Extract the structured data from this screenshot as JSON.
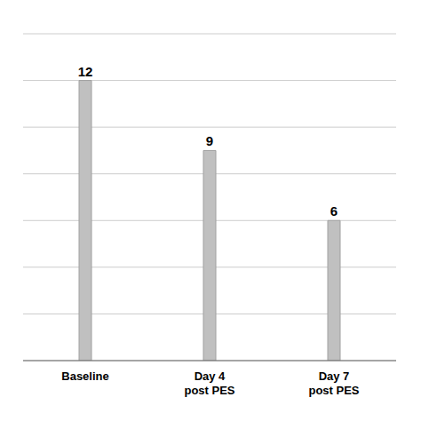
{
  "chart_data": {
    "type": "bar",
    "categories": [
      "Baseline",
      "Day 4\npost PES",
      "Day 7\npost PES"
    ],
    "values": [
      12,
      9,
      6
    ],
    "value_labels": [
      "12",
      "9",
      "6"
    ],
    "data_labels": true,
    "color": "#c0c0c0",
    "ylim": [
      0,
      14
    ],
    "yticks": [
      0,
      2,
      4,
      6,
      8,
      10,
      12,
      14
    ],
    "grid": true,
    "tick_labels": "x"
  }
}
